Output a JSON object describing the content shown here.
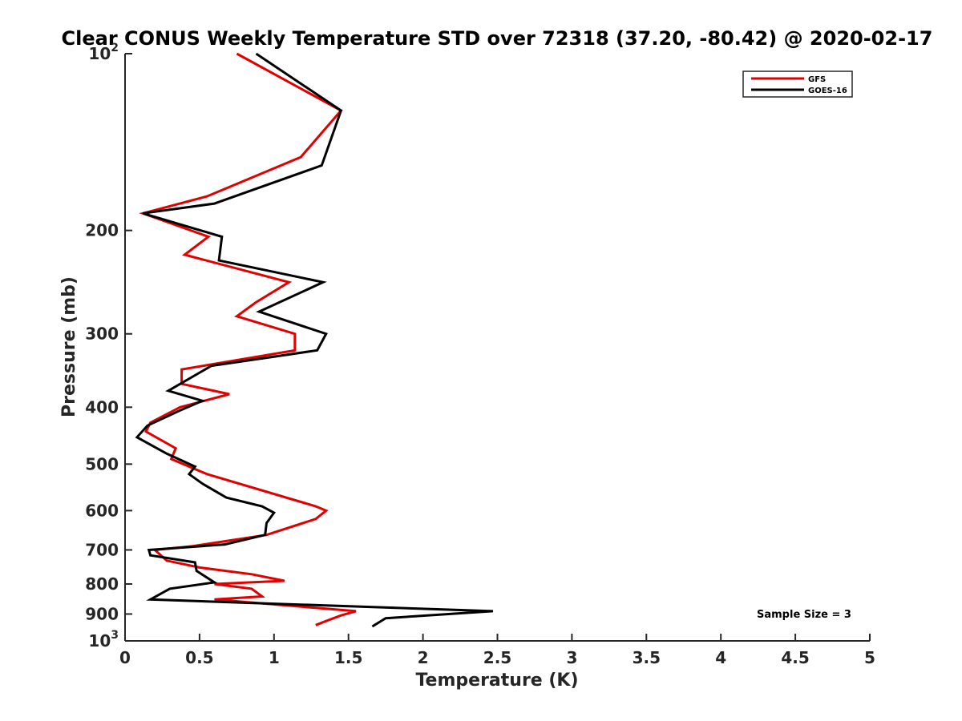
{
  "chart_data": {
    "type": "line",
    "title": "Clear CONUS Weekly Temperature STD over 72318 (37.20, -80.42) @ 2020-02-17",
    "xlabel": "Temperature (K)",
    "ylabel": "Pressure (mb)",
    "xlim": [
      0,
      5
    ],
    "ylim": [
      100,
      1000
    ],
    "y_scale": "log",
    "y_reversed": true,
    "grid": false,
    "legend_position": "top-right",
    "x_ticks": [
      0,
      0.5,
      1,
      1.5,
      2,
      2.5,
      3,
      3.5,
      4,
      4.5,
      5
    ],
    "x_tick_labels": [
      "0",
      "0.5",
      "1",
      "1.5",
      "2",
      "2.5",
      "3",
      "3.5",
      "4",
      "4.5",
      "5"
    ],
    "y_ticks": [
      100,
      200,
      300,
      400,
      500,
      600,
      700,
      800,
      900,
      1000
    ],
    "y_tick_labels": [
      {
        "base": "10",
        "exp": "2"
      },
      {
        "base": "200",
        "exp": ""
      },
      {
        "base": "300",
        "exp": ""
      },
      {
        "base": "400",
        "exp": ""
      },
      {
        "base": "500",
        "exp": ""
      },
      {
        "base": "600",
        "exp": ""
      },
      {
        "base": "700",
        "exp": ""
      },
      {
        "base": "800",
        "exp": ""
      },
      {
        "base": "900",
        "exp": ""
      },
      {
        "base": "10",
        "exp": "3"
      }
    ],
    "annotation": "Sample Size = 3",
    "series": [
      {
        "name": "GFS",
        "color": "#e00000",
        "points": [
          [
            0.75,
            100
          ],
          [
            1.45,
            125
          ],
          [
            1.18,
            150
          ],
          [
            0.55,
            175
          ],
          [
            0.12,
            187
          ],
          [
            0.56,
            205
          ],
          [
            0.4,
            220
          ],
          [
            1.1,
            245
          ],
          [
            0.88,
            265
          ],
          [
            0.75,
            280
          ],
          [
            1.14,
            300
          ],
          [
            1.14,
            320
          ],
          [
            0.38,
            345
          ],
          [
            0.38,
            365
          ],
          [
            0.7,
            380
          ],
          [
            0.37,
            400
          ],
          [
            0.17,
            425
          ],
          [
            0.14,
            440
          ],
          [
            0.34,
            470
          ],
          [
            0.31,
            490
          ],
          [
            0.55,
            520
          ],
          [
            1.28,
            590
          ],
          [
            1.35,
            600
          ],
          [
            1.28,
            620
          ],
          [
            0.95,
            660
          ],
          [
            0.45,
            690
          ],
          [
            0.2,
            700
          ],
          [
            0.28,
            730
          ],
          [
            0.5,
            750
          ],
          [
            0.85,
            770
          ],
          [
            1.07,
            790
          ],
          [
            0.6,
            800
          ],
          [
            0.85,
            815
          ],
          [
            0.92,
            840
          ],
          [
            0.6,
            850
          ],
          [
            1.55,
            890
          ],
          [
            1.45,
            905
          ],
          [
            1.35,
            925
          ],
          [
            1.28,
            940
          ]
        ]
      },
      {
        "name": "GOES-16",
        "color": "#000000",
        "points": [
          [
            0.88,
            100
          ],
          [
            1.45,
            125
          ],
          [
            1.32,
            155
          ],
          [
            0.6,
            180
          ],
          [
            0.12,
            187
          ],
          [
            0.65,
            205
          ],
          [
            0.63,
            225
          ],
          [
            1.33,
            245
          ],
          [
            0.9,
            275
          ],
          [
            1.35,
            300
          ],
          [
            1.29,
            320
          ],
          [
            0.58,
            340
          ],
          [
            0.29,
            375
          ],
          [
            0.52,
            390
          ],
          [
            0.37,
            405
          ],
          [
            0.15,
            430
          ],
          [
            0.08,
            450
          ],
          [
            0.28,
            480
          ],
          [
            0.47,
            505
          ],
          [
            0.43,
            520
          ],
          [
            0.52,
            540
          ],
          [
            0.68,
            570
          ],
          [
            0.92,
            590
          ],
          [
            1.0,
            605
          ],
          [
            0.95,
            630
          ],
          [
            0.94,
            660
          ],
          [
            0.67,
            685
          ],
          [
            0.16,
            700
          ],
          [
            0.17,
            715
          ],
          [
            0.47,
            735
          ],
          [
            0.48,
            760
          ],
          [
            0.6,
            795
          ],
          [
            0.3,
            815
          ],
          [
            0.17,
            850
          ],
          [
            2.47,
            890
          ],
          [
            1.75,
            915
          ],
          [
            1.66,
            945
          ]
        ]
      }
    ]
  }
}
